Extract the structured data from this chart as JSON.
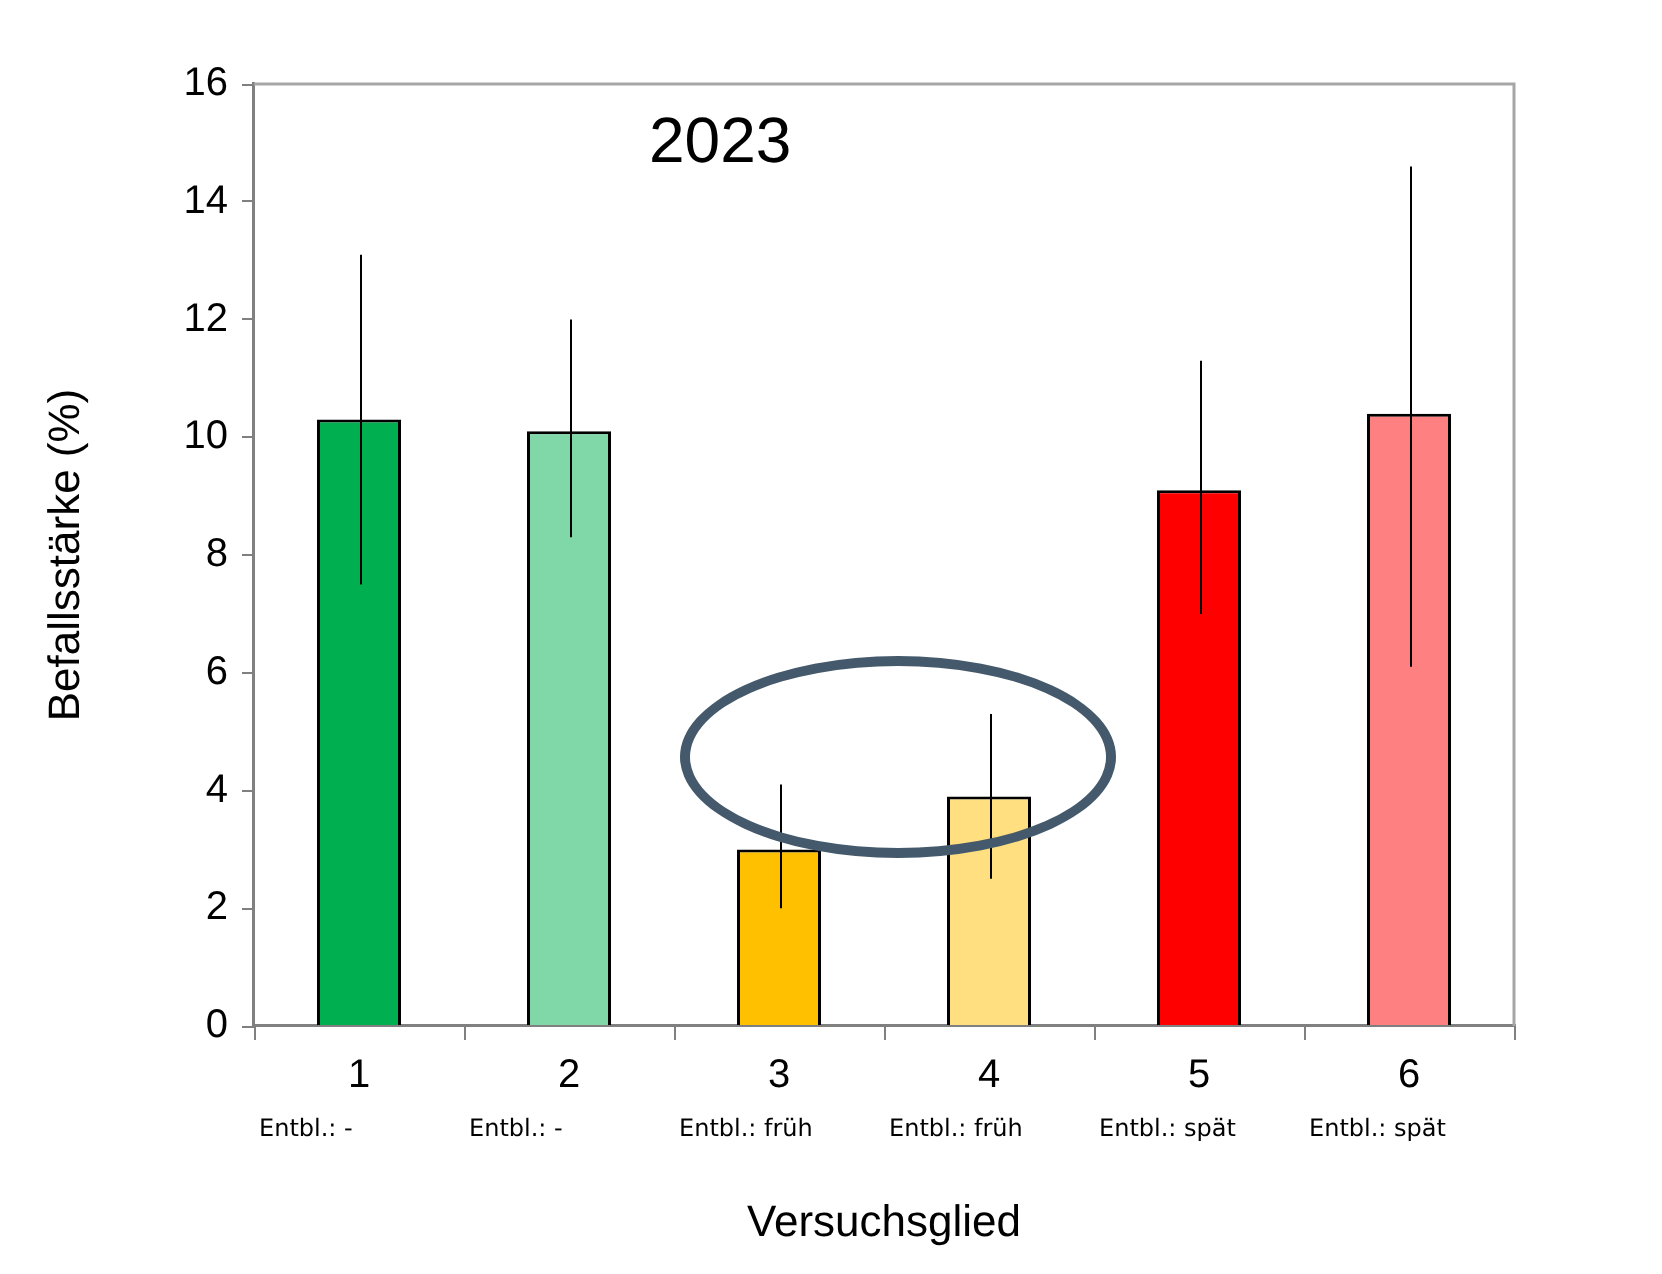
{
  "chart_data": {
    "type": "bar",
    "title": "2023",
    "xlabel": "Versuchsglied",
    "ylabel": "Befallsstärke (%)",
    "categories": [
      "1\nEntbl.: -",
      "2\nEntbl.: -",
      "3\nEntbl.: früh",
      "4\nEntbl.: früh",
      "5\nEntbl.: spät",
      "6\nEntbl.: spät"
    ],
    "values": [
      10.3,
      10.1,
      3.0,
      3.9,
      9.1,
      10.4
    ],
    "colors": [
      "#00b050",
      "#80d7a7",
      "#ffc000",
      "#ffdf80",
      "#ff0000",
      "#ff8080"
    ],
    "errors": [
      [
        7.5,
        13.1
      ],
      [
        8.3,
        12.0
      ],
      [
        2.0,
        4.1
      ],
      [
        2.5,
        5.3
      ],
      [
        7.0,
        11.3
      ],
      [
        6.1,
        14.6
      ]
    ],
    "ylim": [
      0,
      16
    ],
    "yticks": [
      0,
      2,
      4,
      6,
      8,
      10,
      12,
      14,
      16
    ]
  }
}
